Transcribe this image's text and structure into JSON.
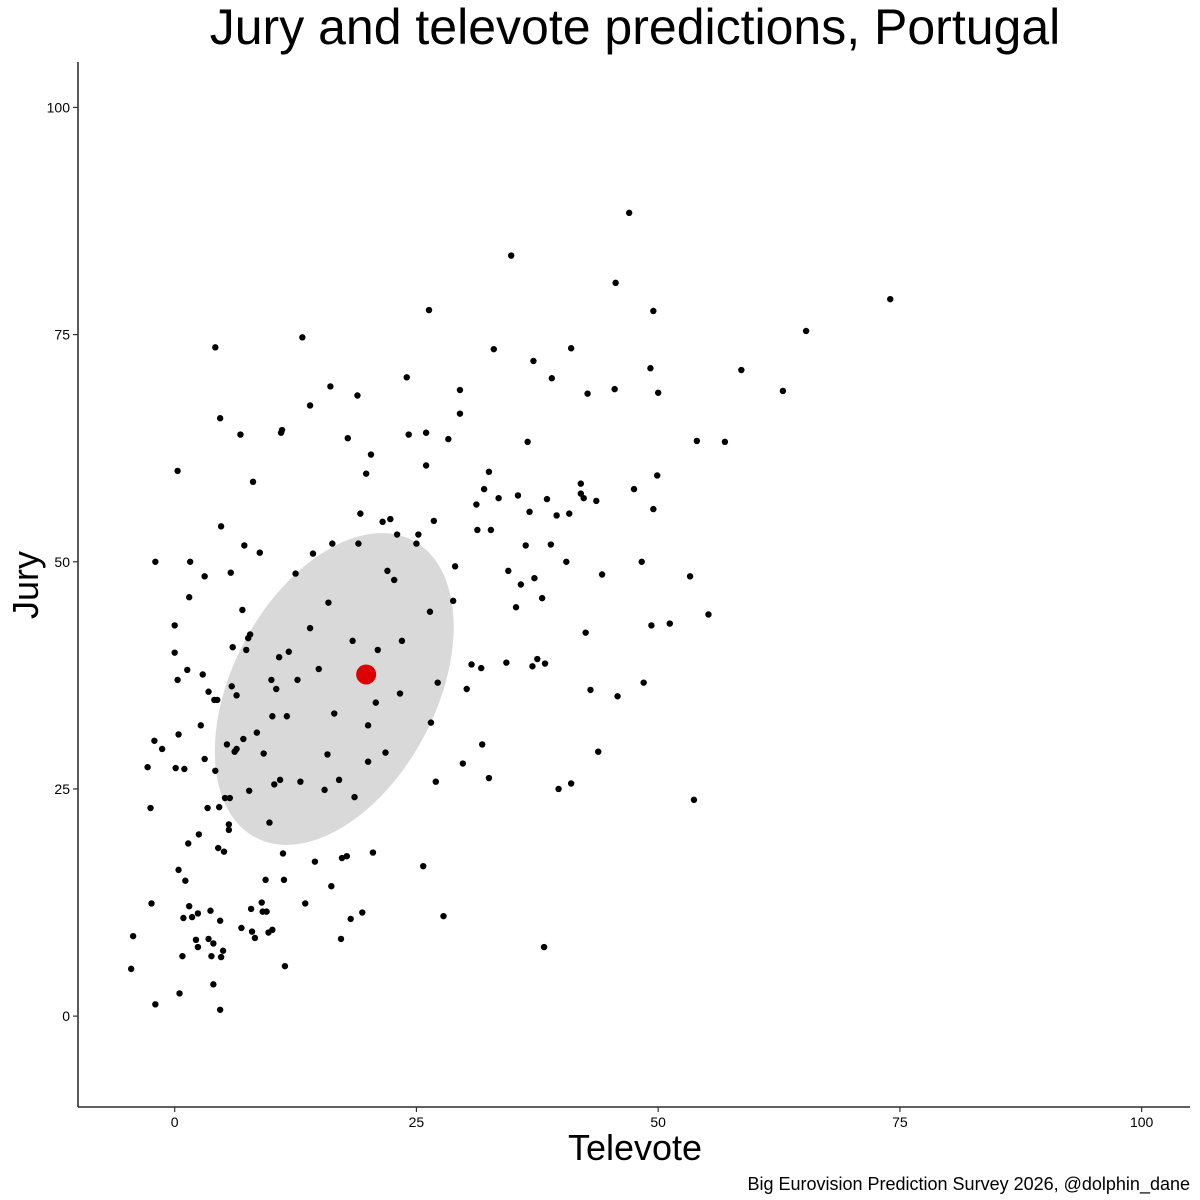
{
  "chart_data": {
    "type": "scatter",
    "title": "Jury and televote predictions, Portugal",
    "xlabel": "Televote",
    "ylabel": "Jury",
    "caption": "Big Eurovision Prediction Survey 2026, @dolphin_dane",
    "xlim": [
      -10,
      105
    ],
    "ylim": [
      -10,
      105
    ],
    "x_ticks": [
      0,
      25,
      50,
      75,
      100
    ],
    "y_ticks": [
      0,
      25,
      50,
      75,
      100
    ],
    "grid": false,
    "colors": {
      "points": "#000000",
      "mean": "#dd0000",
      "ellipse": "#d9d9d9",
      "axis": "#000000"
    },
    "mean_point": {
      "x": 19.8,
      "y": 37.6
    },
    "ellipse": {
      "cx": 16.5,
      "cy": 36,
      "rx": 10.5,
      "ry": 18.5,
      "angle_deg": 28
    },
    "points": [
      [
        -4.5,
        5.2
      ],
      [
        -4.3,
        8.8
      ],
      [
        -2.0,
        1.3
      ],
      [
        -2.5,
        22.9
      ],
      [
        -2.4,
        12.4
      ],
      [
        -2.8,
        27.4
      ],
      [
        -2.1,
        30.3
      ],
      [
        -2.0,
        50.0
      ],
      [
        -1.3,
        29.4
      ],
      [
        0.0,
        43.0
      ],
      [
        0.0,
        40.0
      ],
      [
        0.1,
        27.3
      ],
      [
        0.3,
        60.0
      ],
      [
        0.3,
        37.0
      ],
      [
        0.4,
        31.0
      ],
      [
        0.4,
        16.1
      ],
      [
        0.5,
        2.5
      ],
      [
        0.8,
        6.6
      ],
      [
        0.9,
        10.8
      ],
      [
        1.0,
        27.2
      ],
      [
        1.1,
        14.9
      ],
      [
        1.3,
        38.1
      ],
      [
        1.4,
        19.0
      ],
      [
        1.5,
        46.1
      ],
      [
        1.5,
        12.1
      ],
      [
        1.6,
        50.0
      ],
      [
        1.8,
        10.9
      ],
      [
        2.2,
        8.4
      ],
      [
        2.4,
        11.3
      ],
      [
        2.4,
        7.6
      ],
      [
        2.5,
        20.0
      ],
      [
        2.7,
        32.0
      ],
      [
        2.9,
        37.6
      ],
      [
        3.1,
        28.3
      ],
      [
        3.1,
        48.4
      ],
      [
        3.4,
        22.9
      ],
      [
        3.5,
        35.7
      ],
      [
        3.5,
        8.5
      ],
      [
        3.7,
        11.6
      ],
      [
        3.8,
        6.6
      ],
      [
        4.0,
        8.0
      ],
      [
        4.0,
        3.5
      ],
      [
        4.1,
        34.8
      ],
      [
        4.2,
        27.0
      ],
      [
        4.2,
        73.6
      ],
      [
        4.4,
        34.8
      ],
      [
        4.5,
        18.5
      ],
      [
        4.6,
        23.0
      ],
      [
        4.7,
        10.5
      ],
      [
        4.7,
        65.8
      ],
      [
        4.7,
        0.7
      ],
      [
        4.8,
        53.9
      ],
      [
        4.8,
        6.5
      ],
      [
        5.0,
        7.2
      ],
      [
        5.1,
        18.1
      ],
      [
        5.2,
        24.0
      ],
      [
        5.4,
        29.9
      ],
      [
        5.6,
        20.5
      ],
      [
        5.6,
        21.1
      ],
      [
        5.7,
        24.0
      ],
      [
        5.8,
        48.8
      ],
      [
        5.9,
        36.3
      ],
      [
        6.0,
        40.6
      ],
      [
        6.2,
        29.1
      ],
      [
        6.4,
        35.3
      ],
      [
        6.4,
        29.4
      ],
      [
        6.8,
        64.0
      ],
      [
        6.9,
        9.7
      ],
      [
        7.0,
        44.7
      ],
      [
        7.1,
        30.5
      ],
      [
        7.2,
        51.8
      ],
      [
        7.4,
        40.3
      ],
      [
        7.6,
        41.6
      ],
      [
        7.7,
        24.8
      ],
      [
        7.8,
        42.0
      ],
      [
        7.9,
        11.8
      ],
      [
        8.0,
        9.3
      ],
      [
        8.1,
        58.8
      ],
      [
        8.3,
        8.6
      ],
      [
        8.5,
        31.2
      ],
      [
        8.8,
        51.0
      ],
      [
        9.0,
        12.5
      ],
      [
        9.1,
        11.5
      ],
      [
        9.2,
        28.9
      ],
      [
        9.4,
        15.0
      ],
      [
        9.5,
        11.5
      ],
      [
        9.7,
        9.2
      ],
      [
        9.8,
        21.3
      ],
      [
        10.0,
        37.0
      ],
      [
        10.1,
        33.0
      ],
      [
        10.1,
        9.5
      ],
      [
        10.3,
        25.5
      ],
      [
        10.5,
        36.0
      ],
      [
        10.8,
        39.5
      ],
      [
        10.9,
        26.0
      ],
      [
        11.0,
        64.2
      ],
      [
        11.1,
        64.5
      ],
      [
        11.2,
        17.9
      ],
      [
        11.3,
        15.0
      ],
      [
        11.4,
        5.5
      ],
      [
        11.6,
        33.0
      ],
      [
        11.8,
        40.1
      ],
      [
        12.5,
        48.7
      ],
      [
        12.7,
        37.0
      ],
      [
        13.0,
        25.8
      ],
      [
        13.2,
        74.7
      ],
      [
        13.5,
        12.4
      ],
      [
        14.0,
        67.2
      ],
      [
        14.0,
        42.7
      ],
      [
        14.3,
        50.9
      ],
      [
        14.5,
        17.0
      ],
      [
        14.9,
        38.2
      ],
      [
        15.5,
        24.9
      ],
      [
        15.8,
        28.8
      ],
      [
        15.9,
        45.5
      ],
      [
        16.1,
        69.3
      ],
      [
        16.2,
        14.3
      ],
      [
        16.3,
        52.0
      ],
      [
        16.5,
        33.3
      ],
      [
        17.0,
        26.0
      ],
      [
        17.2,
        8.5
      ],
      [
        17.3,
        17.4
      ],
      [
        17.8,
        17.6
      ],
      [
        17.9,
        63.6
      ],
      [
        18.2,
        10.7
      ],
      [
        18.4,
        41.3
      ],
      [
        18.6,
        24.1
      ],
      [
        18.9,
        68.3
      ],
      [
        19.0,
        52.0
      ],
      [
        19.2,
        55.3
      ],
      [
        19.4,
        11.4
      ],
      [
        19.8,
        59.7
      ],
      [
        20.0,
        28.0
      ],
      [
        20.0,
        32.0
      ],
      [
        20.3,
        61.8
      ],
      [
        20.5,
        18.0
      ],
      [
        20.8,
        34.5
      ],
      [
        21.0,
        40.3
      ],
      [
        21.5,
        54.4
      ],
      [
        21.8,
        29.0
      ],
      [
        22.0,
        49.0
      ],
      [
        22.3,
        54.7
      ],
      [
        22.7,
        48.0
      ],
      [
        23.0,
        53.0
      ],
      [
        23.3,
        35.5
      ],
      [
        23.5,
        41.3
      ],
      [
        24.0,
        70.3
      ],
      [
        24.2,
        64.0
      ],
      [
        25.0,
        52.0
      ],
      [
        25.2,
        53.0
      ],
      [
        25.7,
        16.5
      ],
      [
        26.0,
        60.6
      ],
      [
        26.0,
        64.2
      ],
      [
        26.3,
        77.7
      ],
      [
        26.4,
        44.5
      ],
      [
        26.5,
        32.3
      ],
      [
        26.8,
        54.5
      ],
      [
        27.0,
        25.8
      ],
      [
        27.2,
        36.7
      ],
      [
        27.8,
        11.0
      ],
      [
        28.3,
        63.5
      ],
      [
        28.8,
        45.7
      ],
      [
        29.0,
        49.5
      ],
      [
        29.5,
        66.3
      ],
      [
        29.5,
        68.9
      ],
      [
        29.8,
        27.8
      ],
      [
        30.2,
        36.0
      ],
      [
        30.7,
        38.7
      ],
      [
        31.2,
        56.3
      ],
      [
        31.3,
        53.5
      ],
      [
        31.7,
        38.3
      ],
      [
        31.8,
        29.9
      ],
      [
        32.0,
        58.0
      ],
      [
        32.5,
        26.2
      ],
      [
        32.5,
        59.9
      ],
      [
        32.7,
        53.5
      ],
      [
        33.0,
        73.4
      ],
      [
        33.5,
        57.0
      ],
      [
        34.3,
        38.9
      ],
      [
        34.5,
        49.0
      ],
      [
        34.8,
        83.7
      ],
      [
        35.3,
        45.0
      ],
      [
        35.5,
        57.3
      ],
      [
        35.8,
        47.5
      ],
      [
        36.3,
        51.8
      ],
      [
        36.5,
        63.2
      ],
      [
        36.7,
        55.5
      ],
      [
        37.0,
        38.5
      ],
      [
        37.1,
        72.1
      ],
      [
        37.2,
        48.2
      ],
      [
        37.5,
        39.3
      ],
      [
        38.0,
        46.0
      ],
      [
        38.2,
        7.6
      ],
      [
        38.3,
        38.8
      ],
      [
        38.5,
        56.9
      ],
      [
        38.9,
        51.9
      ],
      [
        39.0,
        70.2
      ],
      [
        39.5,
        55.1
      ],
      [
        39.7,
        25.0
      ],
      [
        40.5,
        50.0
      ],
      [
        40.8,
        55.3
      ],
      [
        41.0,
        25.6
      ],
      [
        41.0,
        73.5
      ],
      [
        42.0,
        58.6
      ],
      [
        42.0,
        57.5
      ],
      [
        42.3,
        57.0
      ],
      [
        42.5,
        42.2
      ],
      [
        42.7,
        68.5
      ],
      [
        43.0,
        35.9
      ],
      [
        43.6,
        56.7
      ],
      [
        43.8,
        29.1
      ],
      [
        44.2,
        48.6
      ],
      [
        45.5,
        69.0
      ],
      [
        45.6,
        80.7
      ],
      [
        45.8,
        35.2
      ],
      [
        47.0,
        88.4
      ],
      [
        47.5,
        58.0
      ],
      [
        48.3,
        50.0
      ],
      [
        48.5,
        36.7
      ],
      [
        49.2,
        71.3
      ],
      [
        49.3,
        43.0
      ],
      [
        49.5,
        77.6
      ],
      [
        49.5,
        55.8
      ],
      [
        49.9,
        59.5
      ],
      [
        50.0,
        68.6
      ],
      [
        51.2,
        43.2
      ],
      [
        53.3,
        48.4
      ],
      [
        53.7,
        23.8
      ],
      [
        54.0,
        63.3
      ],
      [
        55.2,
        44.2
      ],
      [
        56.9,
        63.2
      ],
      [
        58.6,
        71.1
      ],
      [
        62.9,
        68.8
      ],
      [
        65.3,
        75.4
      ],
      [
        74.0,
        78.9
      ]
    ]
  }
}
